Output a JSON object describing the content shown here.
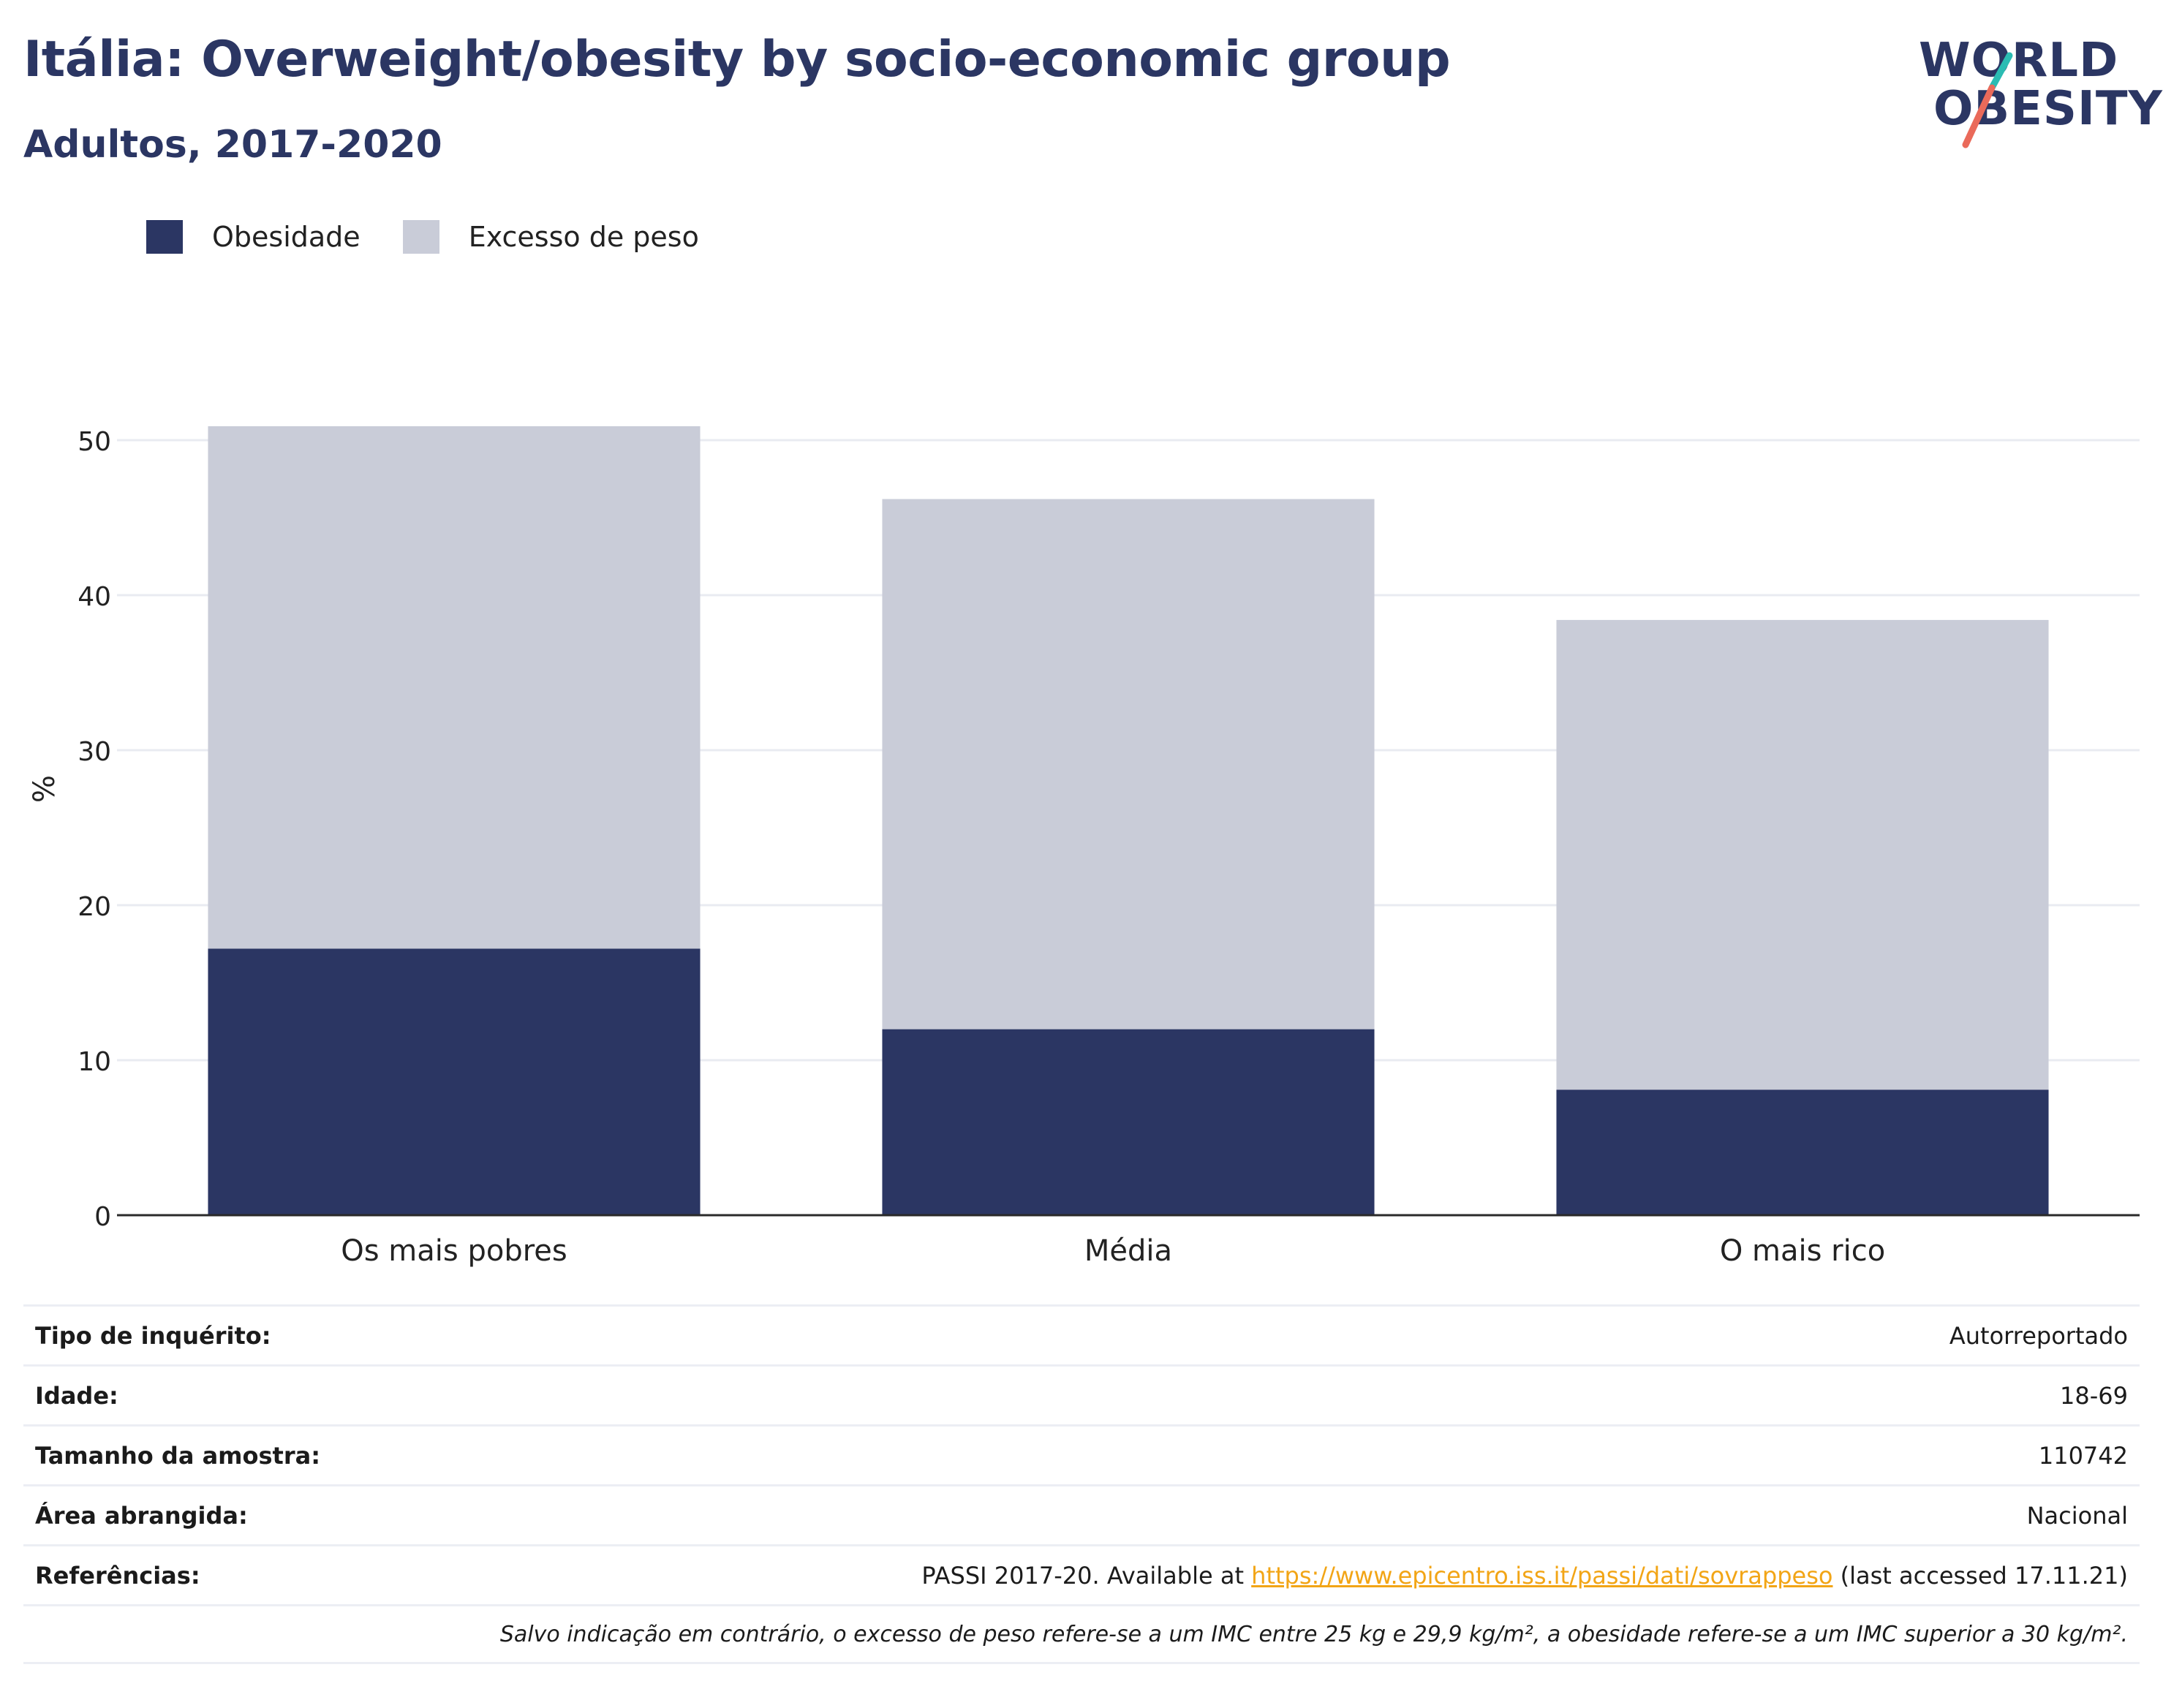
{
  "title": "Itália: Overweight/obesity by socio-economic group",
  "subtitle": "Adultos, 2017-2020",
  "logo": {
    "line1": "WORLD",
    "line2": "OBESITY",
    "accent_teal": "#2bbcb3",
    "accent_red": "#ea6a5a"
  },
  "chart_data": {
    "type": "bar",
    "stacked": true,
    "categories": [
      "Os mais pobres",
      "Média",
      "O mais rico"
    ],
    "series": [
      {
        "name": "Obesidade",
        "values": [
          17.2,
          12.0,
          8.1
        ],
        "color": "#2b3663"
      },
      {
        "name": "Excesso de peso",
        "values": [
          33.7,
          34.2,
          30.3
        ],
        "color": "#c9ccd8"
      }
    ],
    "ylabel": "%",
    "ylim": [
      0,
      55
    ],
    "yticks": [
      0,
      10,
      20,
      30,
      40,
      50
    ],
    "grid": true,
    "legend_position": "top-left"
  },
  "info": {
    "survey_label": "Tipo de inquérito:",
    "survey_value": "Autorreportado",
    "age_label": "Idade:",
    "age_value": "18-69",
    "sample_label": "Tamanho da amostra:",
    "sample_value": "110742",
    "area_label": "Área abrangida:",
    "area_value": "Nacional",
    "ref_label": "Referências:",
    "ref_prefix": "PASSI 2017-20. Available at ",
    "ref_link": "https://www.epicentro.iss.it/passi/dati/sovrappeso",
    "ref_suffix": " (last accessed 17.11.21)",
    "note": "Salvo indicação em contrário, o excesso de peso refere-se a um IMC entre 25 kg e 29,9 kg/m², a obesidade refere-se a um IMC superior a 30 kg/m²."
  }
}
